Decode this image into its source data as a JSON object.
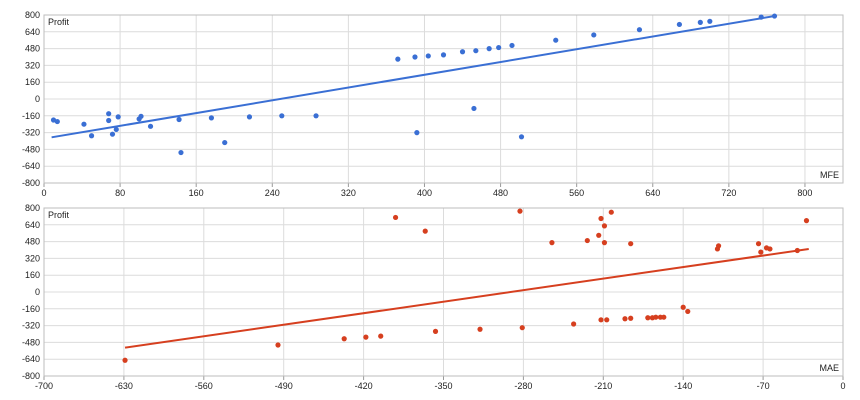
{
  "chart_data": [
    {
      "type": "scatter",
      "title": "",
      "ylabel": "Profit",
      "xlabel": "MFE",
      "xlim": [
        0,
        840
      ],
      "ylim": [
        -800,
        800
      ],
      "xticks": [
        0,
        80,
        160,
        240,
        320,
        400,
        480,
        560,
        640,
        720,
        800
      ],
      "yticks": [
        -800,
        -640,
        -480,
        -320,
        -160,
        0,
        160,
        320,
        480,
        640,
        800
      ],
      "grid": true,
      "color": "#3a6fd4",
      "trendline": {
        "x": [
          8,
          768
        ],
        "y": [
          -365,
          790
        ]
      },
      "points": [
        {
          "x": 10,
          "y": -200
        },
        {
          "x": 14,
          "y": -215
        },
        {
          "x": 42,
          "y": -240
        },
        {
          "x": 50,
          "y": -350
        },
        {
          "x": 68,
          "y": -140
        },
        {
          "x": 68,
          "y": -205
        },
        {
          "x": 72,
          "y": -335
        },
        {
          "x": 76,
          "y": -290
        },
        {
          "x": 78,
          "y": -170
        },
        {
          "x": 100,
          "y": -190
        },
        {
          "x": 102,
          "y": -165
        },
        {
          "x": 112,
          "y": -260
        },
        {
          "x": 142,
          "y": -195
        },
        {
          "x": 144,
          "y": -510
        },
        {
          "x": 176,
          "y": -180
        },
        {
          "x": 190,
          "y": -415
        },
        {
          "x": 216,
          "y": -170
        },
        {
          "x": 250,
          "y": -160
        },
        {
          "x": 286,
          "y": -160
        },
        {
          "x": 372,
          "y": 380
        },
        {
          "x": 390,
          "y": 400
        },
        {
          "x": 392,
          "y": -320
        },
        {
          "x": 404,
          "y": 410
        },
        {
          "x": 420,
          "y": 420
        },
        {
          "x": 440,
          "y": 450
        },
        {
          "x": 452,
          "y": -90
        },
        {
          "x": 454,
          "y": 460
        },
        {
          "x": 468,
          "y": 480
        },
        {
          "x": 478,
          "y": 490
        },
        {
          "x": 492,
          "y": 510
        },
        {
          "x": 502,
          "y": -360
        },
        {
          "x": 538,
          "y": 560
        },
        {
          "x": 578,
          "y": 610
        },
        {
          "x": 626,
          "y": 660
        },
        {
          "x": 668,
          "y": 710
        },
        {
          "x": 690,
          "y": 730
        },
        {
          "x": 700,
          "y": 740
        },
        {
          "x": 754,
          "y": 780
        },
        {
          "x": 768,
          "y": 790
        }
      ]
    },
    {
      "type": "scatter",
      "title": "",
      "ylabel": "Profit",
      "xlabel": "MAE",
      "xlim": [
        -700,
        0
      ],
      "ylim": [
        -800,
        800
      ],
      "xticks": [
        -700,
        -630,
        -560,
        -490,
        -420,
        -350,
        -280,
        -210,
        -140,
        -70,
        0
      ],
      "yticks": [
        -800,
        -640,
        -480,
        -320,
        -160,
        0,
        160,
        320,
        480,
        640,
        800
      ],
      "grid": true,
      "color": "#d63f1f",
      "trendline": {
        "x": [
          -629,
          -30
        ],
        "y": [
          -530,
          410
        ]
      },
      "points": [
        {
          "x": -629,
          "y": -650
        },
        {
          "x": -495,
          "y": -505
        },
        {
          "x": -437,
          "y": -445
        },
        {
          "x": -418,
          "y": -430
        },
        {
          "x": -405,
          "y": -420
        },
        {
          "x": -392,
          "y": 710
        },
        {
          "x": -366,
          "y": 580
        },
        {
          "x": -357,
          "y": -375
        },
        {
          "x": -318,
          "y": -355
        },
        {
          "x": -283,
          "y": 770
        },
        {
          "x": -281,
          "y": -340
        },
        {
          "x": -255,
          "y": 470
        },
        {
          "x": -236,
          "y": -305
        },
        {
          "x": -224,
          "y": 490
        },
        {
          "x": -214,
          "y": 540
        },
        {
          "x": -212,
          "y": 700
        },
        {
          "x": -212,
          "y": -265
        },
        {
          "x": -209,
          "y": 630
        },
        {
          "x": -209,
          "y": 470
        },
        {
          "x": -207,
          "y": -265
        },
        {
          "x": -203,
          "y": 760
        },
        {
          "x": -191,
          "y": -255
        },
        {
          "x": -186,
          "y": 460
        },
        {
          "x": -186,
          "y": -250
        },
        {
          "x": -171,
          "y": -245
        },
        {
          "x": -167,
          "y": -245
        },
        {
          "x": -164,
          "y": -240
        },
        {
          "x": -160,
          "y": -240
        },
        {
          "x": -157,
          "y": -240
        },
        {
          "x": -140,
          "y": -145
        },
        {
          "x": -136,
          "y": -185
        },
        {
          "x": -110,
          "y": 410
        },
        {
          "x": -109,
          "y": 440
        },
        {
          "x": -74,
          "y": 460
        },
        {
          "x": -72,
          "y": 380
        },
        {
          "x": -67,
          "y": 420
        },
        {
          "x": -64,
          "y": 410
        },
        {
          "x": -40,
          "y": 395
        },
        {
          "x": -32,
          "y": 680
        }
      ]
    }
  ]
}
